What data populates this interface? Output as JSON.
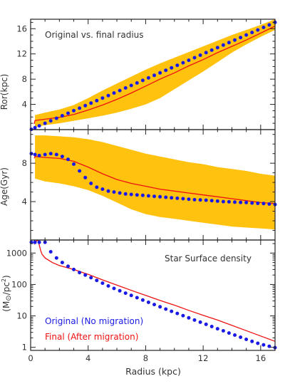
{
  "colors": {
    "band": "#ffc20e",
    "final": "#ee1111",
    "original": "#1a1ae6",
    "frame": "#222222"
  },
  "chart_data": [
    {
      "type": "line",
      "panel": "top",
      "annotation": "Original vs. final radius",
      "ylabel": "Ror(kpc)",
      "xlim": [
        0,
        17
      ],
      "ylim": [
        0,
        17.5
      ],
      "yticks": [
        4,
        8,
        12,
        16
      ],
      "band": {
        "x": [
          0.3,
          1,
          2,
          3,
          4,
          5,
          6,
          7,
          8,
          9,
          10,
          11,
          12,
          13,
          14,
          15,
          16,
          17
        ],
        "lower": [
          0.4,
          0.7,
          1.0,
          1.4,
          1.8,
          2.2,
          2.7,
          3.3,
          4.0,
          5.0,
          6.4,
          7.8,
          9.2,
          10.7,
          12.2,
          13.5,
          14.7,
          15.8
        ],
        "upper": [
          2.3,
          2.7,
          3.2,
          3.9,
          5.0,
          6.2,
          7.3,
          8.4,
          9.5,
          10.5,
          11.4,
          12.3,
          13.2,
          14.1,
          15.0,
          15.8,
          16.6,
          17.5
        ]
      },
      "series": [
        {
          "name": "Final (After migration)",
          "x": [
            0.25,
            0.3,
            1,
            2,
            3,
            4,
            5,
            6,
            7,
            8,
            9,
            10,
            11,
            12,
            13,
            14,
            15,
            16,
            17
          ],
          "y": [
            0.9,
            1.45,
            1.65,
            1.95,
            2.4,
            3.1,
            3.9,
            4.8,
            5.8,
            6.9,
            8.0,
            9.0,
            10.1,
            11.1,
            12.2,
            13.2,
            14.2,
            15.3,
            16.4
          ]
        },
        {
          "name": "Original (No migration)",
          "x": [
            0.05,
            0.3,
            0.6,
            1.0,
            1.4,
            1.8,
            2.2,
            2.6,
            3.0,
            3.4,
            3.8,
            4.2,
            4.6,
            5.0,
            5.4,
            5.8,
            6.2,
            6.6,
            7.0,
            7.4,
            7.8,
            8.2,
            8.6,
            9.0,
            9.4,
            9.8,
            10.2,
            10.6,
            11.0,
            11.4,
            11.8,
            12.2,
            12.6,
            13.0,
            13.4,
            13.8,
            14.2,
            14.6,
            15.0,
            15.4,
            15.8,
            16.2,
            16.6,
            17.0
          ],
          "y": [
            0.05,
            0.3,
            0.6,
            1.0,
            1.4,
            1.8,
            2.2,
            2.6,
            3.0,
            3.4,
            3.8,
            4.2,
            4.6,
            5.0,
            5.4,
            5.8,
            6.2,
            6.6,
            7.0,
            7.4,
            7.8,
            8.2,
            8.6,
            9.0,
            9.4,
            9.8,
            10.2,
            10.6,
            11.0,
            11.4,
            11.8,
            12.2,
            12.6,
            13.0,
            13.4,
            13.8,
            14.2,
            14.6,
            15.0,
            15.4,
            15.8,
            16.2,
            16.6,
            17.0
          ]
        }
      ]
    },
    {
      "type": "line",
      "panel": "middle",
      "ylabel": "Age(Gyr)",
      "xlim": [
        0,
        17
      ],
      "ylim": [
        0,
        11.5
      ],
      "yticks": [
        4,
        8
      ],
      "band": {
        "x": [
          0.3,
          1,
          2,
          3,
          4,
          5,
          6,
          7,
          8,
          9,
          10,
          11,
          12,
          13,
          14,
          15,
          16,
          17
        ],
        "lower": [
          6.4,
          6.1,
          5.9,
          5.6,
          5.2,
          4.6,
          3.9,
          3.2,
          2.7,
          2.4,
          2.2,
          2.0,
          1.8,
          1.6,
          1.4,
          1.3,
          1.2,
          1.1
        ],
        "upper": [
          10.9,
          10.9,
          10.8,
          10.7,
          10.5,
          10.2,
          9.8,
          9.4,
          9.0,
          8.7,
          8.4,
          8.1,
          7.9,
          7.6,
          7.4,
          7.2,
          6.9,
          6.7
        ]
      },
      "series": [
        {
          "name": "Final (After migration)",
          "x": [
            0.25,
            0.3,
            1,
            2,
            3,
            4,
            5,
            6,
            7,
            8,
            9,
            10,
            11,
            12,
            13,
            14,
            15,
            16,
            17
          ],
          "y": [
            8.5,
            8.7,
            8.6,
            8.5,
            8.2,
            7.6,
            6.9,
            6.3,
            5.9,
            5.6,
            5.3,
            5.1,
            4.9,
            4.7,
            4.5,
            4.3,
            4.1,
            3.9,
            3.8
          ]
        },
        {
          "name": "Original (No migration)",
          "x": [
            0.05,
            0.3,
            0.6,
            1.0,
            1.4,
            1.8,
            2.2,
            2.6,
            3.0,
            3.4,
            3.8,
            4.2,
            4.6,
            5.0,
            5.4,
            5.8,
            6.2,
            6.6,
            7.0,
            7.4,
            7.8,
            8.2,
            8.6,
            9.0,
            9.4,
            9.8,
            10.2,
            10.6,
            11.0,
            11.4,
            11.8,
            12.2,
            12.6,
            13.0,
            13.4,
            13.8,
            14.2,
            14.6,
            15.0,
            15.4,
            15.8,
            16.2,
            16.6,
            17.0
          ],
          "y": [
            9.0,
            8.9,
            8.8,
            8.9,
            9.0,
            8.9,
            8.7,
            8.4,
            7.9,
            7.2,
            6.5,
            5.9,
            5.5,
            5.3,
            5.1,
            5.0,
            4.9,
            4.8,
            4.75,
            4.7,
            4.65,
            4.6,
            4.55,
            4.5,
            4.45,
            4.4,
            4.35,
            4.3,
            4.25,
            4.2,
            4.18,
            4.15,
            4.1,
            4.05,
            4.0,
            3.98,
            3.95,
            3.92,
            3.9,
            3.85,
            3.82,
            3.8,
            3.75,
            3.7
          ]
        }
      ]
    },
    {
      "type": "line",
      "panel": "bottom",
      "annotation": "Star Surface density",
      "ylabel": "(M⊙/pc²)",
      "ylabel_main": "(M",
      "ylabel_sun": "⊙",
      "ylabel_unit": "/pc",
      "ylabel_sup": "2",
      "ylabel_close": ")",
      "xlabel": "Radius (kpc)",
      "xlim": [
        0,
        17
      ],
      "ylim": [
        0.8,
        2600
      ],
      "yscale": "log",
      "yticks": [
        1,
        10,
        100,
        1000
      ],
      "xticks": [
        0,
        4,
        8,
        12,
        16
      ],
      "legend": [
        "Original (No migration)",
        "Final (After migration)"
      ],
      "legend_position": "lower-left",
      "series": [
        {
          "name": "Final (After migration)",
          "x": [
            0.28,
            0.3,
            0.4,
            0.5,
            0.6,
            0.7,
            0.8,
            0.9,
            1.0,
            1.5,
            2,
            3,
            4,
            5,
            6,
            7,
            8,
            9,
            10,
            11,
            12,
            13,
            14,
            15,
            16,
            17
          ],
          "y": [
            2600,
            2000,
            2400,
            2600,
            1800,
            1200,
            900,
            800,
            700,
            500,
            400,
            300,
            210,
            140,
            95,
            65,
            45,
            31,
            22,
            15,
            10.5,
            7.4,
            5.0,
            3.4,
            2.3,
            1.55
          ]
        },
        {
          "name": "Original (No migration)",
          "x": [
            0.05,
            0.3,
            0.6,
            1.0,
            1.4,
            1.8,
            2.2,
            2.6,
            3.0,
            3.4,
            3.8,
            4.2,
            4.6,
            5.0,
            5.4,
            5.8,
            6.2,
            6.6,
            7.0,
            7.4,
            7.8,
            8.2,
            8.6,
            9.0,
            9.4,
            9.8,
            10.2,
            10.6,
            11.0,
            11.4,
            11.8,
            12.2,
            12.6,
            13.0,
            13.4,
            13.8,
            14.2,
            14.6,
            15.0,
            15.4,
            15.8,
            16.2,
            16.6,
            17.0
          ],
          "y": [
            2200,
            2200,
            2200,
            2200,
            1100,
            700,
            500,
            380,
            300,
            240,
            200,
            165,
            135,
            110,
            90,
            75,
            63,
            53,
            45,
            38,
            32,
            27,
            23,
            19.5,
            16.5,
            14,
            12,
            10.2,
            8.7,
            7.4,
            6.3,
            5.4,
            4.6,
            3.9,
            3.35,
            2.85,
            2.45,
            2.1,
            1.8,
            1.55,
            1.35,
            1.2,
            1.08,
            0.98
          ]
        }
      ]
    }
  ]
}
